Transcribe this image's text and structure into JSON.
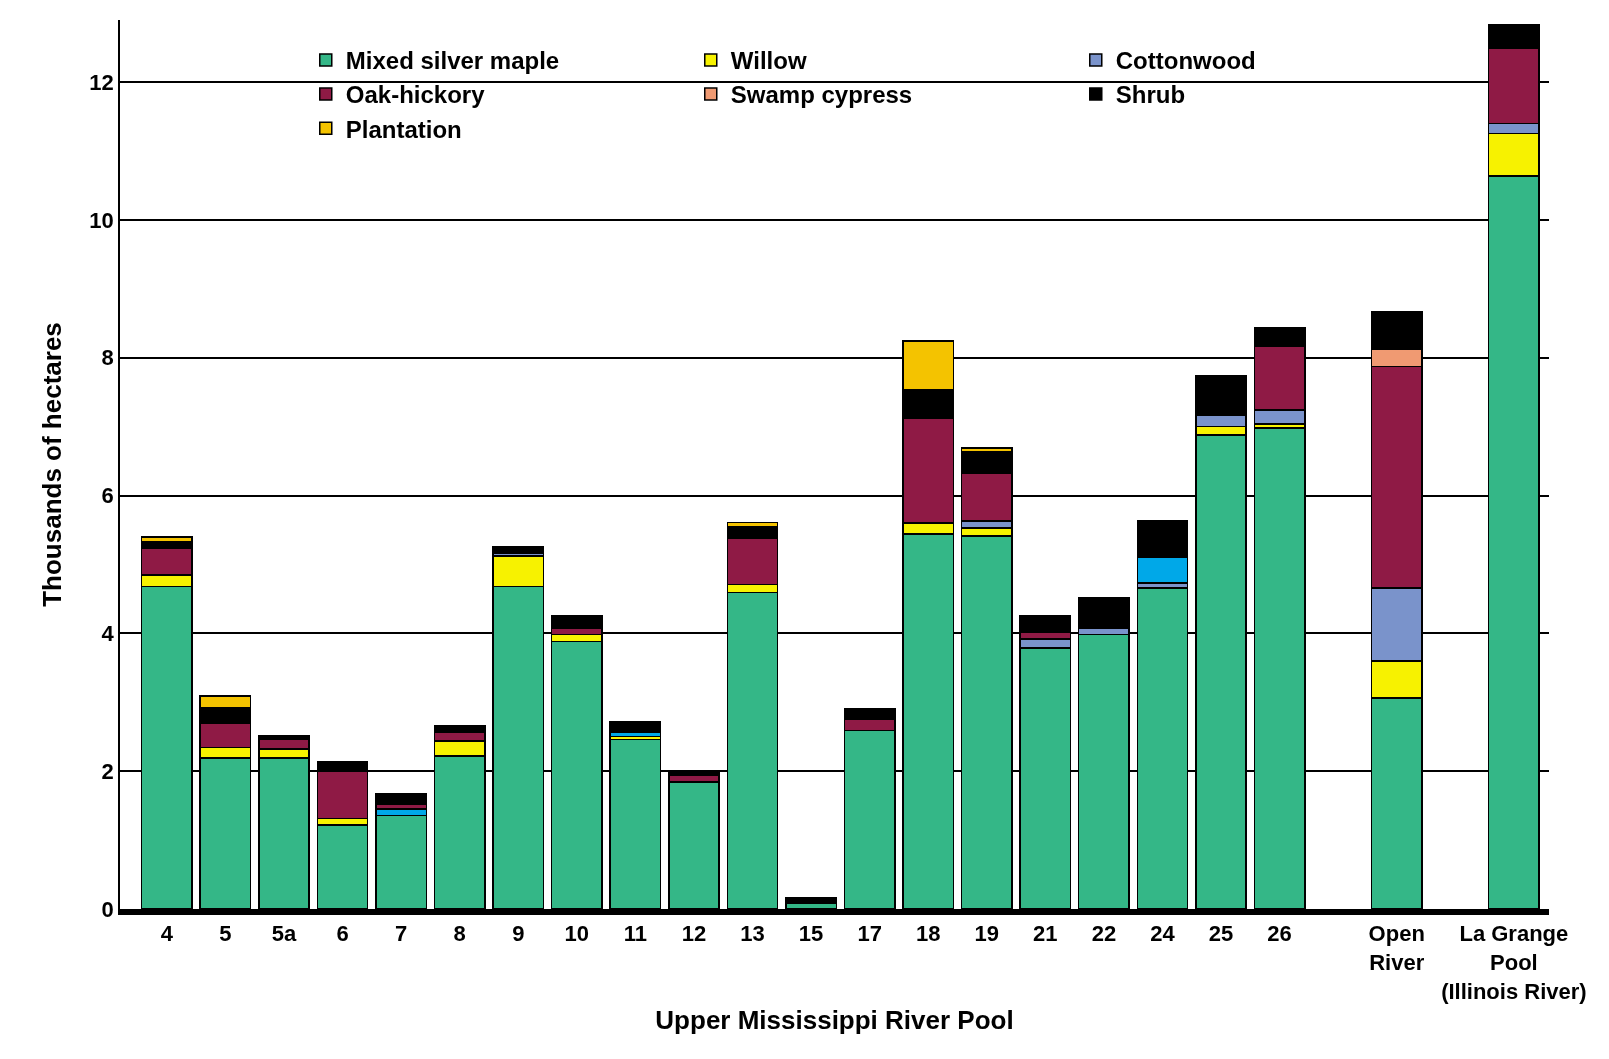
{
  "chart_data": {
    "type": "bar",
    "stacked": true,
    "xlabel": "Upper Mississippi River Pool",
    "ylabel": "Thousands of hectares",
    "categories": [
      "4",
      "5",
      "5a",
      "6",
      "7",
      "8",
      "9",
      "10",
      "11",
      "12",
      "13",
      "15",
      "17",
      "18",
      "19",
      "21",
      "22",
      "24",
      "25",
      "26",
      null,
      "Open\nRiver",
      null,
      "La Grange\nPool\n(Illinois River)"
    ],
    "series": [
      {
        "name": "Mixed silver maple",
        "color": "#34b787",
        "values": [
          4.68,
          2.19,
          2.19,
          1.22,
          1.36,
          2.22,
          4.68,
          3.88,
          2.46,
          1.84,
          4.59,
          0.09,
          2.59,
          5.44,
          5.41,
          3.79,
          3.98,
          4.66,
          6.88,
          6.98,
          null,
          3.06,
          null,
          10.64
        ]
      },
      {
        "name": "Willow",
        "color": "#f7f200",
        "values": [
          0.17,
          0.15,
          0.13,
          0.09,
          null,
          0.22,
          0.44,
          0.1,
          0.04,
          null,
          0.12,
          null,
          null,
          0.16,
          0.12,
          null,
          null,
          null,
          0.12,
          0.06,
          null,
          0.54,
          null,
          0.61
        ]
      },
      {
        "name": "Cottonwood",
        "color": "#7a93cb",
        "values": [
          null,
          null,
          null,
          null,
          null,
          null,
          0.04,
          null,
          null,
          null,
          null,
          null,
          null,
          null,
          0.1,
          0.13,
          0.1,
          0.07,
          0.17,
          0.2,
          null,
          1.06,
          null,
          0.15
        ]
      },
      {
        "color": "#00a8e8",
        "values": [
          null,
          null,
          null,
          null,
          0.09,
          null,
          null,
          null,
          0.06,
          null,
          null,
          null,
          null,
          null,
          null,
          null,
          null,
          0.38,
          null,
          null,
          null,
          null,
          null,
          null
        ]
      },
      {
        "name": "Oak-hickory",
        "color": "#8f1a45",
        "values": [
          0.38,
          0.36,
          0.15,
          0.69,
          0.07,
          0.12,
          null,
          0.1,
          null,
          0.1,
          0.67,
          null,
          0.16,
          1.52,
          0.69,
          0.09,
          null,
          null,
          null,
          0.92,
          null,
          3.21,
          null,
          1.09
        ]
      },
      {
        "name": "Swamp cypress",
        "color": "#f09a72",
        "values": [
          null,
          null,
          null,
          null,
          null,
          null,
          null,
          null,
          null,
          null,
          null,
          null,
          null,
          null,
          null,
          null,
          null,
          null,
          null,
          null,
          null,
          0.25,
          null,
          null
        ]
      },
      {
        "name": "Shrub",
        "color": "#000000",
        "values": [
          0.1,
          0.22,
          0.04,
          0.13,
          0.15,
          0.1,
          0.1,
          0.17,
          0.15,
          0.07,
          0.17,
          0.07,
          0.15,
          0.41,
          0.31,
          0.25,
          0.44,
          0.52,
          0.57,
          0.28,
          null,
          0.55,
          null,
          0.34
        ]
      },
      {
        "name": "Plantation",
        "color": "#f4c300",
        "values": [
          0.07,
          0.17,
          null,
          null,
          null,
          null,
          null,
          null,
          null,
          null,
          0.06,
          null,
          null,
          0.71,
          0.06,
          null,
          null,
          null,
          null,
          null,
          null,
          null,
          null,
          null
        ]
      }
    ],
    "ylim": [
      0,
      12.9
    ],
    "yticks": [
      0,
      2,
      4,
      6,
      8,
      10,
      12
    ],
    "grid": "y",
    "legend": "top left"
  }
}
